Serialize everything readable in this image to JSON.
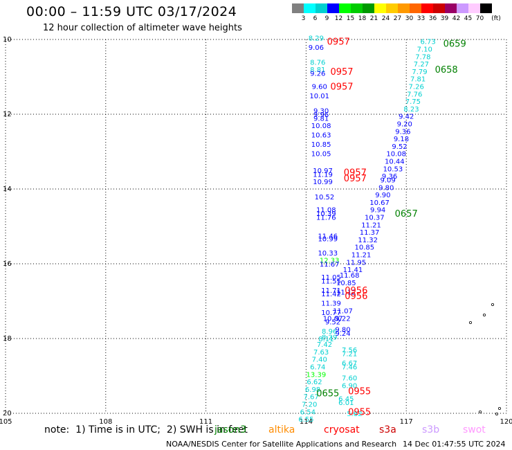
{
  "header": {
    "title": "00:00 – 11:59 UTC 03/17/2024",
    "subtitle": "12 hour collection of altimeter wave heights"
  },
  "colorbar": {
    "labels": [
      "3",
      "6",
      "9",
      "12",
      "15",
      "18",
      "21",
      "24",
      "27",
      "30",
      "33",
      "36",
      "39",
      "42",
      "45",
      "70"
    ],
    "unit": "(ft)",
    "colors": [
      "#808080",
      "#00ffff",
      "#00d0d0",
      "#0000ff",
      "#00ff00",
      "#00cc00",
      "#009900",
      "#ffff00",
      "#ffcc00",
      "#ff9900",
      "#ff6600",
      "#ff0000",
      "#cc0000",
      "#990066",
      "#cc99ff",
      "#ffccff",
      "#000000"
    ]
  },
  "footer": {
    "note": "note:  1) Time is in UTC;  2) SWH is in feet",
    "satellites": [
      {
        "name": "jason3",
        "color": "#008000"
      },
      {
        "name": "altika",
        "color": "#ff8c00"
      },
      {
        "name": "cryosat",
        "color": "#ff0000"
      },
      {
        "name": "s3a",
        "color": "#cc0000"
      },
      {
        "name": "s3b",
        "color": "#cc99ff"
      },
      {
        "name": "swot",
        "color": "#ff99ff"
      }
    ],
    "credit": "NOAA/NESDIS Center for Satellite Applications and Research",
    "generated": "14 Dec 01:47:55 UTC 2024"
  },
  "chart_data": {
    "type": "scatter",
    "title": "00:00 – 11:59 UTC 03/17/2024",
    "xlabel": "",
    "ylabel": "",
    "x_ticks": [
      105,
      108,
      111,
      114,
      117,
      120
    ],
    "y_ticks": [
      -10,
      -12,
      -14,
      -16,
      -18,
      -20
    ],
    "y_tick_labels": [
      "10",
      "12",
      "14",
      "16",
      "18",
      "20"
    ],
    "xlim": [
      105,
      120
    ],
    "ylim": [
      -20,
      -10
    ],
    "grid": true,
    "time_labels": [
      {
        "lon": 114.97,
        "lat": -10.05,
        "text": "0957",
        "color": "#ff0000"
      },
      {
        "lon": 115.07,
        "lat": -10.85,
        "text": "0957",
        "color": "#ff0000"
      },
      {
        "lon": 115.07,
        "lat": -11.25,
        "text": "0957",
        "color": "#ff0000"
      },
      {
        "lon": 115.47,
        "lat": -13.55,
        "text": "0957",
        "color": "#ff0000"
      },
      {
        "lon": 115.47,
        "lat": -13.7,
        "text": "0957",
        "color": "#ff0000"
      },
      {
        "lon": 115.5,
        "lat": -16.7,
        "text": "0956",
        "color": "#ff0000"
      },
      {
        "lon": 115.5,
        "lat": -16.85,
        "text": "0956",
        "color": "#ff0000"
      },
      {
        "lon": 115.6,
        "lat": -19.4,
        "text": "0955",
        "color": "#ff0000"
      },
      {
        "lon": 115.6,
        "lat": -19.95,
        "text": "0955",
        "color": "#ff0000"
      },
      {
        "lon": 118.45,
        "lat": -10.1,
        "text": "0659",
        "color": "#008000"
      },
      {
        "lon": 118.2,
        "lat": -10.8,
        "text": "0658",
        "color": "#008000"
      },
      {
        "lon": 117.0,
        "lat": -14.65,
        "text": "0657",
        "color": "#008000"
      },
      {
        "lon": 114.65,
        "lat": -19.45,
        "text": "0655",
        "color": "#008000"
      }
    ],
    "series": [
      {
        "name": "cryosat",
        "points": [
          {
            "lon": 114.3,
            "lat": -9.95,
            "v": 8.29
          },
          {
            "lon": 114.3,
            "lat": -10.2,
            "v": 9.06
          },
          {
            "lon": 114.35,
            "lat": -10.6,
            "v": 8.76
          },
          {
            "lon": 114.35,
            "lat": -10.8,
            "v": 8.81
          },
          {
            "lon": 114.35,
            "lat": -10.9,
            "v": 9.26
          },
          {
            "lon": 114.4,
            "lat": -11.25,
            "v": 9.6
          },
          {
            "lon": 114.4,
            "lat": -11.5,
            "v": 10.01
          },
          {
            "lon": 114.45,
            "lat": -11.9,
            "v": 9.3
          },
          {
            "lon": 114.45,
            "lat": -12.0,
            "v": 9.96
          },
          {
            "lon": 114.45,
            "lat": -12.1,
            "v": 9.81
          },
          {
            "lon": 114.45,
            "lat": -12.3,
            "v": 10.08
          },
          {
            "lon": 114.45,
            "lat": -12.55,
            "v": 10.63
          },
          {
            "lon": 114.45,
            "lat": -12.8,
            "v": 10.85
          },
          {
            "lon": 114.45,
            "lat": -13.05,
            "v": 10.05
          },
          {
            "lon": 114.5,
            "lat": -13.5,
            "v": 10.97
          },
          {
            "lon": 114.5,
            "lat": -13.6,
            "v": 11.19
          },
          {
            "lon": 114.5,
            "lat": -13.8,
            "v": 10.99
          },
          {
            "lon": 114.55,
            "lat": -14.2,
            "v": 10.52
          },
          {
            "lon": 114.6,
            "lat": -14.55,
            "v": 11.08
          },
          {
            "lon": 114.6,
            "lat": -14.65,
            "v": 10.39
          },
          {
            "lon": 114.6,
            "lat": -14.75,
            "v": 11.76
          },
          {
            "lon": 114.65,
            "lat": -15.25,
            "v": 11.46
          },
          {
            "lon": 114.65,
            "lat": -15.32,
            "v": 10.99
          },
          {
            "lon": 114.65,
            "lat": -15.7,
            "v": 10.33
          },
          {
            "lon": 114.7,
            "lat": -15.9,
            "v": 12.33
          },
          {
            "lon": 114.7,
            "lat": -16.0,
            "v": 11.67
          },
          {
            "lon": 114.75,
            "lat": -16.35,
            "v": 11.05
          },
          {
            "lon": 114.75,
            "lat": -16.45,
            "v": 11.55
          },
          {
            "lon": 114.75,
            "lat": -16.7,
            "v": 11.71
          },
          {
            "lon": 114.75,
            "lat": -16.8,
            "v": 11.42
          },
          {
            "lon": 114.75,
            "lat": -17.05,
            "v": 11.39
          },
          {
            "lon": 114.75,
            "lat": -17.3,
            "v": 10.77
          },
          {
            "lon": 114.8,
            "lat": -17.45,
            "v": 10.07
          },
          {
            "lon": 114.8,
            "lat": -17.55,
            "v": 9.52
          },
          {
            "lon": 114.7,
            "lat": -17.8,
            "v": 8.96
          },
          {
            "lon": 114.7,
            "lat": -17.95,
            "v": 8.29
          },
          {
            "lon": 114.6,
            "lat": -18.0,
            "v": 8.11
          },
          {
            "lon": 114.55,
            "lat": -18.15,
            "v": 7.42
          },
          {
            "lon": 114.45,
            "lat": -18.35,
            "v": 7.63
          },
          {
            "lon": 114.4,
            "lat": -18.55,
            "v": 7.4
          },
          {
            "lon": 114.35,
            "lat": -18.75,
            "v": 6.74
          },
          {
            "lon": 114.3,
            "lat": -18.95,
            "v": 13.39
          },
          {
            "lon": 114.25,
            "lat": -19.15,
            "v": 6.62
          },
          {
            "lon": 114.2,
            "lat": -19.35,
            "v": 6.98
          },
          {
            "lon": 114.15,
            "lat": -19.55,
            "v": 7.67
          },
          {
            "lon": 114.1,
            "lat": -19.75,
            "v": 7.2
          },
          {
            "lon": 114.05,
            "lat": -19.95,
            "v": 6.54
          },
          {
            "lon": 114.0,
            "lat": -20.15,
            "v": 6.55
          }
        ]
      },
      {
        "name": "jason3",
        "points": [
          {
            "lon": 117.65,
            "lat": -10.05,
            "v": 6.73
          },
          {
            "lon": 117.55,
            "lat": -10.25,
            "v": 7.1
          },
          {
            "lon": 117.5,
            "lat": -10.45,
            "v": 7.78
          },
          {
            "lon": 117.45,
            "lat": -10.65,
            "v": 7.27
          },
          {
            "lon": 117.4,
            "lat": -10.85,
            "v": 7.79
          },
          {
            "lon": 117.35,
            "lat": -11.05,
            "v": 7.81
          },
          {
            "lon": 117.3,
            "lat": -11.25,
            "v": 7.26
          },
          {
            "lon": 117.25,
            "lat": -11.45,
            "v": 7.76
          },
          {
            "lon": 117.2,
            "lat": -11.65,
            "v": 7.75
          },
          {
            "lon": 117.15,
            "lat": -11.85,
            "v": 8.23
          },
          {
            "lon": 117.0,
            "lat": -12.05,
            "v": 9.42
          },
          {
            "lon": 116.95,
            "lat": -12.25,
            "v": 9.2
          },
          {
            "lon": 116.9,
            "lat": -12.45,
            "v": 9.36
          },
          {
            "lon": 116.85,
            "lat": -12.65,
            "v": 9.18
          },
          {
            "lon": 116.8,
            "lat": -12.85,
            "v": 9.52
          },
          {
            "lon": 116.7,
            "lat": -13.05,
            "v": 10.08
          },
          {
            "lon": 116.65,
            "lat": -13.25,
            "v": 10.44
          },
          {
            "lon": 116.6,
            "lat": -13.45,
            "v": 10.53
          },
          {
            "lon": 116.5,
            "lat": -13.65,
            "v": 9.36
          },
          {
            "lon": 116.45,
            "lat": -13.75,
            "v": 9.09
          },
          {
            "lon": 116.4,
            "lat": -13.95,
            "v": 9.8
          },
          {
            "lon": 116.3,
            "lat": -14.15,
            "v": 9.9
          },
          {
            "lon": 116.2,
            "lat": -14.35,
            "v": 10.67
          },
          {
            "lon": 116.15,
            "lat": -14.55,
            "v": 9.94
          },
          {
            "lon": 116.05,
            "lat": -14.75,
            "v": 10.37
          },
          {
            "lon": 115.95,
            "lat": -14.95,
            "v": 11.21
          },
          {
            "lon": 115.9,
            "lat": -15.15,
            "v": 11.37
          },
          {
            "lon": 115.85,
            "lat": -15.35,
            "v": 11.32
          },
          {
            "lon": 115.75,
            "lat": -15.55,
            "v": 10.85
          },
          {
            "lon": 115.65,
            "lat": -15.75,
            "v": 11.21
          },
          {
            "lon": 115.5,
            "lat": -15.95,
            "v": 11.95
          },
          {
            "lon": 115.4,
            "lat": -16.15,
            "v": 11.41
          },
          {
            "lon": 115.3,
            "lat": -16.3,
            "v": 11.68
          },
          {
            "lon": 115.2,
            "lat": -16.5,
            "v": 10.85
          },
          {
            "lon": 115.2,
            "lat": -16.75,
            "v": 11.12
          },
          {
            "lon": 115.1,
            "lat": -17.25,
            "v": 11.07
          },
          {
            "lon": 115.1,
            "lat": -17.45,
            "v": 9.22
          },
          {
            "lon": 115.1,
            "lat": -17.75,
            "v": 9.8
          },
          {
            "lon": 115.1,
            "lat": -17.85,
            "v": 9.24
          },
          {
            "lon": 115.3,
            "lat": -18.3,
            "v": 7.56
          },
          {
            "lon": 115.3,
            "lat": -18.4,
            "v": 7.21
          },
          {
            "lon": 115.3,
            "lat": -18.65,
            "v": 6.67
          },
          {
            "lon": 115.3,
            "lat": -18.75,
            "v": 7.46
          },
          {
            "lon": 115.3,
            "lat": -19.05,
            "v": 7.6
          },
          {
            "lon": 115.3,
            "lat": -19.25,
            "v": 6.9
          },
          {
            "lon": 115.2,
            "lat": -19.6,
            "v": 6.45
          },
          {
            "lon": 115.2,
            "lat": -19.7,
            "v": 6.01
          },
          {
            "lon": 115.45,
            "lat": -20.0,
            "v": 5.82
          }
        ]
      }
    ]
  }
}
